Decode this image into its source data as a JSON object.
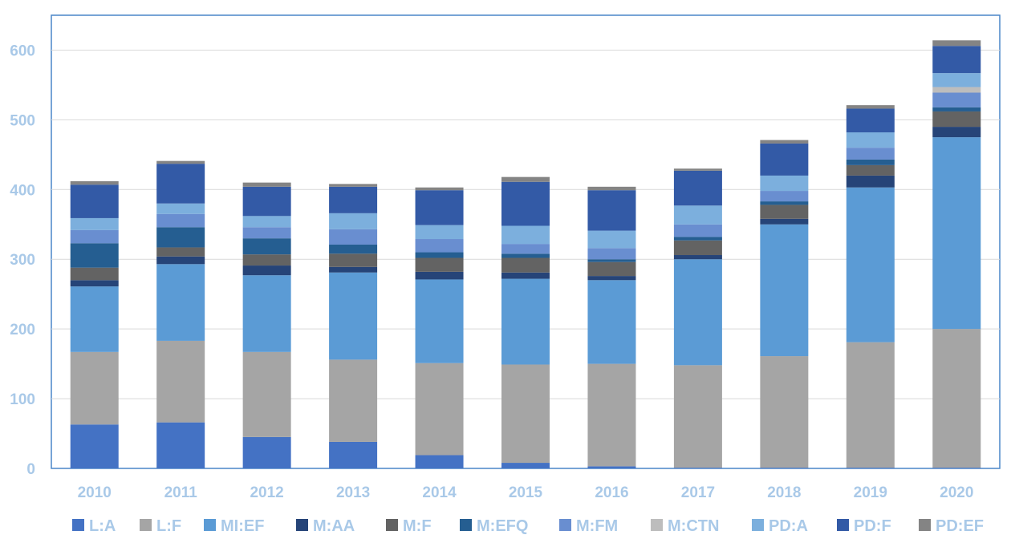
{
  "chart_data": {
    "type": "bar",
    "stacked": true,
    "categories": [
      "2010",
      "2011",
      "2012",
      "2013",
      "2014",
      "2015",
      "2016",
      "2017",
      "2018",
      "2019",
      "2020"
    ],
    "ylim": [
      0,
      650
    ],
    "yticks": [
      0,
      100,
      200,
      300,
      400,
      500,
      600
    ],
    "grid": true,
    "legend_position": "bottom",
    "series": [
      {
        "name": "L:A",
        "color": "#4472C4",
        "values": [
          63,
          66,
          45,
          38,
          19,
          8,
          3,
          1,
          1,
          1,
          1
        ]
      },
      {
        "name": "L:F",
        "color": "#A5A5A5",
        "values": [
          104,
          117,
          122,
          118,
          132,
          141,
          147,
          147,
          160,
          180,
          199
        ]
      },
      {
        "name": "MI:EF",
        "color": "#5B9BD5",
        "values": [
          94,
          110,
          110,
          125,
          120,
          123,
          120,
          152,
          189,
          222,
          275
        ]
      },
      {
        "name": "M:AA",
        "color": "#264478",
        "values": [
          9,
          11,
          14,
          8,
          11,
          9,
          6,
          6,
          8,
          17,
          15
        ]
      },
      {
        "name": "M:F",
        "color": "#636363",
        "values": [
          18,
          13,
          16,
          19,
          20,
          21,
          20,
          21,
          20,
          15,
          22
        ]
      },
      {
        "name": "M:EFQ",
        "color": "#255E91",
        "values": [
          35,
          29,
          23,
          13,
          8,
          6,
          4,
          5,
          5,
          8,
          6
        ]
      },
      {
        "name": "M:FM",
        "color": "#698ED0",
        "values": [
          19,
          19,
          16,
          22,
          19,
          14,
          16,
          18,
          15,
          17,
          21
        ]
      },
      {
        "name": "M:CTN",
        "color": "#BDBDBD",
        "values": [
          0,
          0,
          0,
          0,
          0,
          0,
          0,
          0,
          0,
          0,
          8
        ]
      },
      {
        "name": "PD:A",
        "color": "#7CAFDD",
        "values": [
          17,
          15,
          16,
          23,
          20,
          26,
          25,
          27,
          22,
          22,
          20
        ]
      },
      {
        "name": "PD:F",
        "color": "#335AA6",
        "values": [
          48,
          57,
          42,
          38,
          50,
          63,
          58,
          50,
          46,
          34,
          39
        ]
      },
      {
        "name": "PD:EF",
        "color": "#848484",
        "values": [
          5,
          4,
          6,
          4,
          4,
          7,
          5,
          3,
          5,
          5,
          8
        ]
      }
    ]
  }
}
